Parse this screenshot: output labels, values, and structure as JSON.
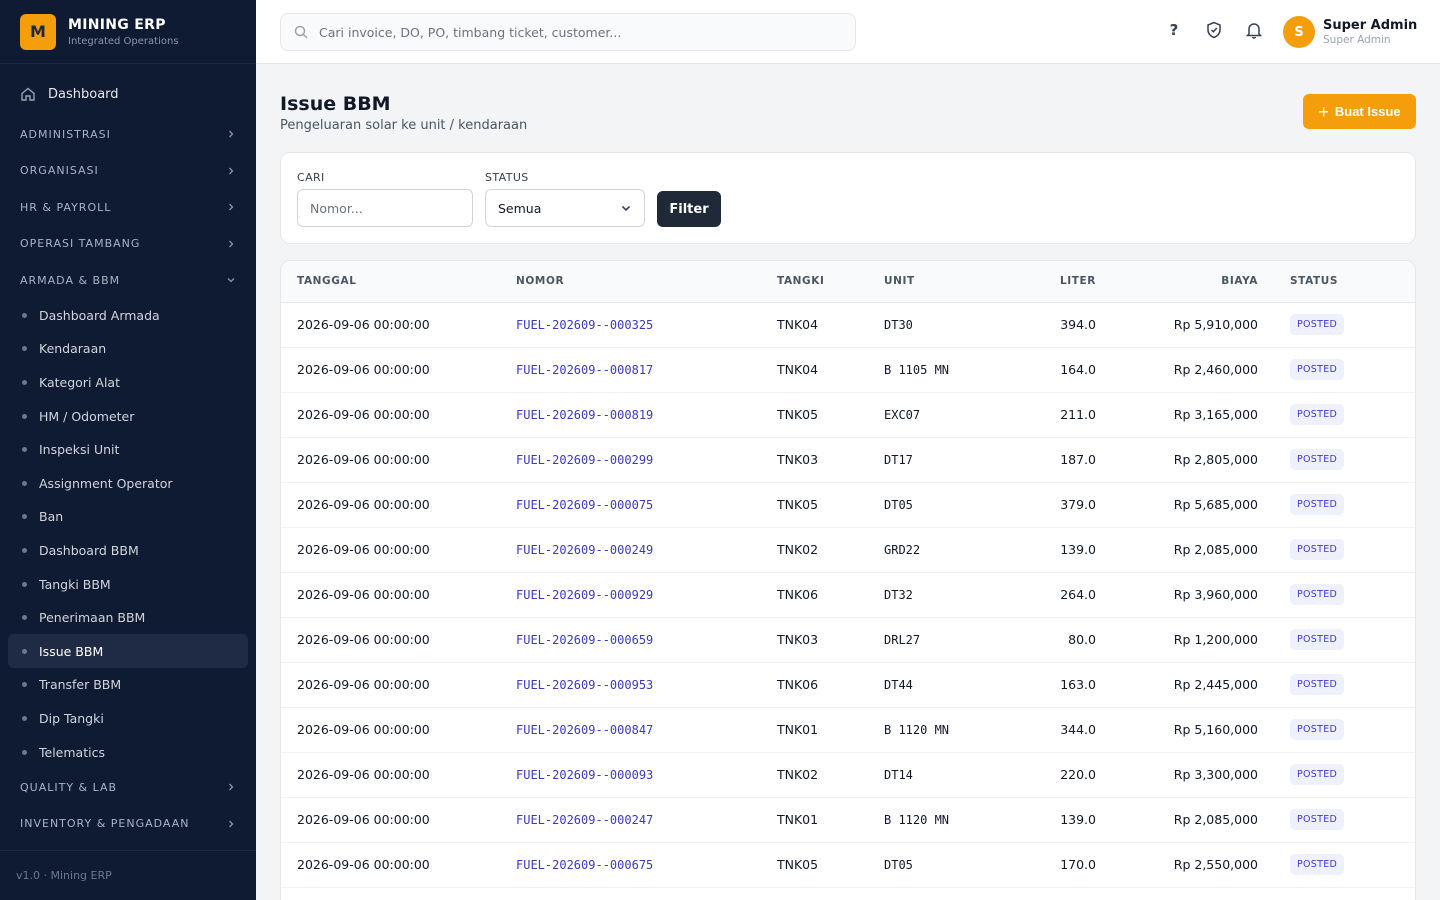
{
  "brand": {
    "logo": "M",
    "title": "MINING ERP",
    "subtitle": "Integrated Operations"
  },
  "sidebar": {
    "dashboard": "Dashboard",
    "sections_top": [
      "ADMINISTRASI",
      "ORGANISASI",
      "HR & PAYROLL",
      "OPERASI TAMBANG"
    ],
    "open_section": "ARMADA & BBM",
    "items": [
      "Dashboard Armada",
      "Kendaraan",
      "Kategori Alat",
      "HM / Odometer",
      "Inspeksi Unit",
      "Assignment Operator",
      "Ban",
      "Dashboard BBM",
      "Tangki BBM",
      "Penerimaan BBM",
      "Issue BBM",
      "Transfer BBM",
      "Dip Tangki",
      "Telematics"
    ],
    "active_item": "Issue BBM",
    "sections_bottom": [
      "QUALITY & LAB",
      "INVENTORY & PENGADAAN"
    ],
    "footer": "v1.0 · Mining ERP"
  },
  "topbar": {
    "search_placeholder": "Cari invoice, DO, PO, timbang ticket, customer...",
    "icons": [
      "help-icon",
      "shield-icon",
      "bell-icon"
    ],
    "user": {
      "initial": "S",
      "name": "Super Admin",
      "role": "Super Admin"
    }
  },
  "page": {
    "title": "Issue BBM",
    "subtitle": "Pengeluaran solar ke unit / kendaraan",
    "create_button": "Buat Issue"
  },
  "filter": {
    "search_label": "CARI",
    "search_placeholder": "Nomor...",
    "status_label": "STATUS",
    "status_value": "Semua",
    "button": "Filter"
  },
  "table": {
    "columns": [
      "TANGGAL",
      "NOMOR",
      "TANGKI",
      "UNIT",
      "LITER",
      "BIAYA",
      "STATUS"
    ],
    "rows": [
      {
        "tanggal": "2026-09-06 00:00:00",
        "nomor": "FUEL-202609--000325",
        "tangki": "TNK04",
        "unit": "DT30",
        "liter": "394.0",
        "biaya": "Rp 5,910,000",
        "status": "POSTED"
      },
      {
        "tanggal": "2026-09-06 00:00:00",
        "nomor": "FUEL-202609--000817",
        "tangki": "TNK04",
        "unit": "B 1105 MN",
        "liter": "164.0",
        "biaya": "Rp 2,460,000",
        "status": "POSTED"
      },
      {
        "tanggal": "2026-09-06 00:00:00",
        "nomor": "FUEL-202609--000819",
        "tangki": "TNK05",
        "unit": "EXC07",
        "liter": "211.0",
        "biaya": "Rp 3,165,000",
        "status": "POSTED"
      },
      {
        "tanggal": "2026-09-06 00:00:00",
        "nomor": "FUEL-202609--000299",
        "tangki": "TNK03",
        "unit": "DT17",
        "liter": "187.0",
        "biaya": "Rp 2,805,000",
        "status": "POSTED"
      },
      {
        "tanggal": "2026-09-06 00:00:00",
        "nomor": "FUEL-202609--000075",
        "tangki": "TNK05",
        "unit": "DT05",
        "liter": "379.0",
        "biaya": "Rp 5,685,000",
        "status": "POSTED"
      },
      {
        "tanggal": "2026-09-06 00:00:00",
        "nomor": "FUEL-202609--000249",
        "tangki": "TNK02",
        "unit": "GRD22",
        "liter": "139.0",
        "biaya": "Rp 2,085,000",
        "status": "POSTED"
      },
      {
        "tanggal": "2026-09-06 00:00:00",
        "nomor": "FUEL-202609--000929",
        "tangki": "TNK06",
        "unit": "DT32",
        "liter": "264.0",
        "biaya": "Rp 3,960,000",
        "status": "POSTED"
      },
      {
        "tanggal": "2026-09-06 00:00:00",
        "nomor": "FUEL-202609--000659",
        "tangki": "TNK03",
        "unit": "DRL27",
        "liter": "80.0",
        "biaya": "Rp 1,200,000",
        "status": "POSTED"
      },
      {
        "tanggal": "2026-09-06 00:00:00",
        "nomor": "FUEL-202609--000953",
        "tangki": "TNK06",
        "unit": "DT44",
        "liter": "163.0",
        "biaya": "Rp 2,445,000",
        "status": "POSTED"
      },
      {
        "tanggal": "2026-09-06 00:00:00",
        "nomor": "FUEL-202609--000847",
        "tangki": "TNK01",
        "unit": "B 1120 MN",
        "liter": "344.0",
        "biaya": "Rp 5,160,000",
        "status": "POSTED"
      },
      {
        "tanggal": "2026-09-06 00:00:00",
        "nomor": "FUEL-202609--000093",
        "tangki": "TNK02",
        "unit": "DT14",
        "liter": "220.0",
        "biaya": "Rp 3,300,000",
        "status": "POSTED"
      },
      {
        "tanggal": "2026-09-06 00:00:00",
        "nomor": "FUEL-202609--000247",
        "tangki": "TNK01",
        "unit": "B 1120 MN",
        "liter": "139.0",
        "biaya": "Rp 2,085,000",
        "status": "POSTED"
      },
      {
        "tanggal": "2026-09-06 00:00:00",
        "nomor": "FUEL-202609--000675",
        "tangki": "TNK05",
        "unit": "DT05",
        "liter": "170.0",
        "biaya": "Rp 2,550,000",
        "status": "POSTED"
      }
    ]
  },
  "colors": {
    "sidebar_bg": "#0f1b33",
    "accent": "#f59e0b",
    "link": "#3b3bb8",
    "badge_bg": "#eef0fb",
    "badge_text": "#4338ca"
  }
}
